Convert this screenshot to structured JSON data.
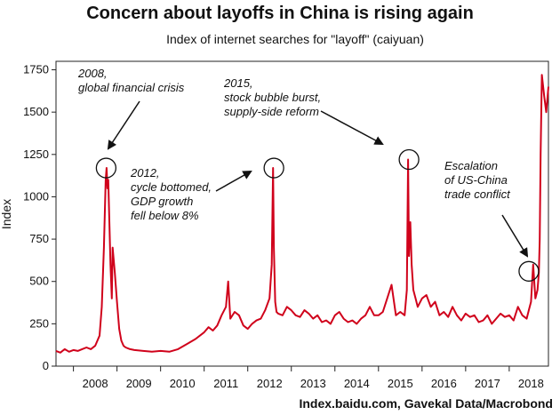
{
  "chart_data": {
    "type": "line",
    "title": "Concern about layoffs in China is rising again",
    "subtitle": "Index of internet searches for \"layoff\" (caiyuan)",
    "xlabel": "",
    "ylabel": "Index",
    "source": "Index.baidu.com, Gavekal Data/Macrobond",
    "ylim": [
      0,
      1800
    ],
    "yticks": [
      0,
      250,
      500,
      750,
      1000,
      1250,
      1500,
      1750
    ],
    "xlim": [
      2007.6,
      2018.9
    ],
    "xtick_labels": [
      "2008",
      "2009",
      "2010",
      "2011",
      "2012",
      "2013",
      "2014",
      "2015",
      "2016",
      "2017",
      "2018"
    ],
    "grid": false,
    "line_color": "#d0021b",
    "series": [
      {
        "x": [
          2007.6,
          2007.7,
          2007.8,
          2007.9,
          2008.0,
          2008.1,
          2008.2,
          2008.3,
          2008.4,
          2008.5,
          2008.6,
          2008.65,
          2008.7,
          2008.74,
          2008.76,
          2008.78,
          2008.8,
          2008.82,
          2008.85,
          2008.88,
          2008.9,
          2008.95,
          2009.0,
          2009.05,
          2009.1,
          2009.15,
          2009.2,
          2009.3,
          2009.4,
          2009.6,
          2009.8,
          2010.0,
          2010.2,
          2010.4,
          2010.6,
          2010.8,
          2011.0,
          2011.1,
          2011.2,
          2011.3,
          2011.4,
          2011.5,
          2011.55,
          2011.6,
          2011.7,
          2011.8,
          2011.9,
          2012.0,
          2012.1,
          2012.2,
          2012.3,
          2012.4,
          2012.5,
          2012.55,
          2012.58,
          2012.6,
          2012.63,
          2012.66,
          2012.7,
          2012.8,
          2012.9,
          2013.0,
          2013.1,
          2013.2,
          2013.3,
          2013.4,
          2013.5,
          2013.6,
          2013.7,
          2013.8,
          2013.9,
          2014.0,
          2014.1,
          2014.2,
          2014.3,
          2014.4,
          2014.5,
          2014.6,
          2014.7,
          2014.8,
          2014.9,
          2015.0,
          2015.1,
          2015.2,
          2015.3,
          2015.4,
          2015.5,
          2015.6,
          2015.65,
          2015.68,
          2015.7,
          2015.73,
          2015.76,
          2015.8,
          2015.85,
          2015.9,
          2016.0,
          2016.1,
          2016.2,
          2016.3,
          2016.4,
          2016.5,
          2016.6,
          2016.7,
          2016.8,
          2016.9,
          2017.0,
          2017.1,
          2017.2,
          2017.3,
          2017.4,
          2017.5,
          2017.6,
          2017.7,
          2017.8,
          2017.9,
          2018.0,
          2018.1,
          2018.2,
          2018.3,
          2018.4,
          2018.45,
          2018.5,
          2018.55,
          2018.6,
          2018.65,
          2018.68,
          2018.7,
          2018.72,
          2018.75,
          2018.8,
          2018.85,
          2018.9
        ],
        "y": [
          90,
          80,
          100,
          85,
          95,
          90,
          100,
          110,
          100,
          120,
          180,
          350,
          700,
          1100,
          1170,
          1050,
          1100,
          900,
          600,
          400,
          700,
          550,
          380,
          220,
          150,
          120,
          110,
          100,
          95,
          90,
          85,
          90,
          85,
          100,
          130,
          160,
          200,
          230,
          210,
          240,
          300,
          350,
          500,
          280,
          320,
          300,
          240,
          220,
          250,
          270,
          280,
          330,
          400,
          600,
          1170,
          700,
          380,
          320,
          310,
          300,
          350,
          330,
          300,
          290,
          330,
          310,
          280,
          300,
          260,
          270,
          250,
          300,
          320,
          280,
          260,
          270,
          250,
          280,
          300,
          350,
          300,
          300,
          320,
          400,
          480,
          300,
          320,
          300,
          450,
          1220,
          650,
          850,
          600,
          450,
          400,
          350,
          400,
          420,
          350,
          380,
          300,
          320,
          290,
          350,
          300,
          270,
          310,
          290,
          300,
          260,
          270,
          300,
          250,
          280,
          310,
          290,
          300,
          270,
          350,
          300,
          280,
          330,
          380,
          600,
          400,
          450,
          550,
          750,
          1250,
          1720,
          1600,
          1500,
          1650
        ]
      }
    ],
    "annotations": [
      {
        "lines": [
          "2008,",
          "global financial crisis"
        ],
        "x": 2008.75,
        "y": 1170
      },
      {
        "lines": [
          "2012,",
          "cycle bottomed,",
          "GDP growth",
          "fell below 8%"
        ],
        "x": 2012.6,
        "y": 1170
      },
      {
        "lines": [
          "2015,",
          "stock bubble burst,",
          "supply-side reform"
        ],
        "x": 2015.7,
        "y": 1220
      },
      {
        "lines": [
          "Escalation",
          "of US-China",
          "trade conflict"
        ],
        "x": 2018.45,
        "y": 560
      }
    ]
  }
}
